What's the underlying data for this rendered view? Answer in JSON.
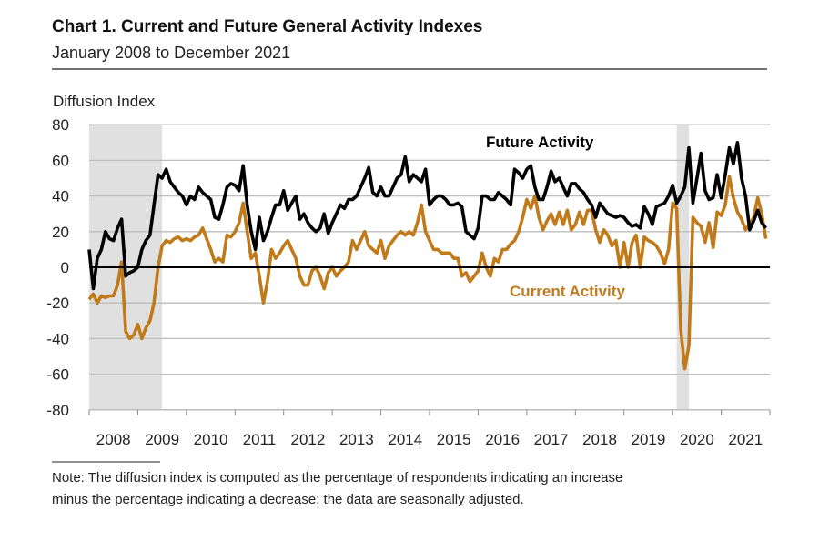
{
  "chart_data": {
    "type": "line",
    "title": "Chart 1. Current and Future General Activity Indexes",
    "subtitle": "January 2008 to December 2021",
    "ylabel": "Diffusion Index",
    "ylim": [
      -80,
      80
    ],
    "yticks": [
      "80",
      "60",
      "40",
      "20",
      "0",
      "-20",
      "-40",
      "-60",
      "-80"
    ],
    "ytick_values": [
      80,
      60,
      40,
      20,
      0,
      -20,
      -40,
      -60,
      -80
    ],
    "xlim": [
      "2008-01",
      "2021-12"
    ],
    "xtick_labels": [
      "2008",
      "2009",
      "2010",
      "2011",
      "2012",
      "2013",
      "2014",
      "2015",
      "2016",
      "2017",
      "2018",
      "2019",
      "2020",
      "2021"
    ],
    "frequency": "monthly",
    "grid": "horizontal",
    "recession_shading": [
      [
        "2008-01",
        "2009-06"
      ],
      [
        "2020-02",
        "2020-04"
      ]
    ],
    "colors": {
      "future": "#000000",
      "current": "#C07A1A",
      "shading": "#E0E0E0"
    },
    "series": [
      {
        "name": "Future Activity",
        "values": [
          10,
          -12,
          5,
          10,
          20,
          16,
          15,
          22,
          27,
          -5,
          -3,
          -2,
          0,
          10,
          15,
          18,
          35,
          52,
          50,
          55,
          48,
          45,
          42,
          40,
          35,
          40,
          38,
          45,
          42,
          40,
          38,
          28,
          27,
          35,
          45,
          47,
          46,
          43,
          57,
          35,
          20,
          10,
          28,
          15,
          20,
          28,
          35,
          35,
          43,
          32,
          36,
          40,
          27,
          30,
          25,
          22,
          20,
          22,
          30,
          19,
          25,
          30,
          35,
          33,
          38,
          38,
          40,
          45,
          50,
          56,
          42,
          40,
          45,
          40,
          40,
          45,
          50,
          52,
          62,
          48,
          52,
          50,
          48,
          55,
          35,
          38,
          40,
          40,
          38,
          35,
          35,
          36,
          34,
          20,
          18,
          16,
          22,
          40,
          40,
          38,
          38,
          42,
          40,
          38,
          35,
          55,
          53,
          50,
          55,
          57,
          45,
          38,
          38,
          45,
          54,
          48,
          50,
          45,
          40,
          47,
          47,
          44,
          42,
          38,
          35,
          28,
          36,
          33,
          30,
          29,
          28,
          29,
          28,
          25,
          23,
          24,
          22,
          34,
          30,
          24,
          34,
          35,
          36,
          40,
          46,
          36,
          40,
          45,
          67,
          36,
          50,
          64,
          43,
          38,
          39,
          52,
          39,
          52,
          67,
          58,
          70,
          50,
          40,
          21,
          26,
          32,
          25,
          22
        ]
      },
      {
        "name": "Current Activity",
        "values": [
          -18,
          -15,
          -20,
          -16,
          -17,
          -16,
          -16,
          -10,
          3,
          -36,
          -40,
          -38,
          -32,
          -40,
          -34,
          -30,
          -20,
          0,
          12,
          15,
          14,
          16,
          17,
          15,
          16,
          15,
          17,
          18,
          22,
          16,
          10,
          3,
          5,
          3,
          18,
          17,
          20,
          25,
          36,
          20,
          5,
          8,
          -5,
          -20,
          -8,
          10,
          5,
          8,
          12,
          15,
          10,
          5,
          -5,
          -10,
          -10,
          -2,
          0,
          -5,
          -12,
          -3,
          0,
          -5,
          -2,
          0,
          3,
          15,
          10,
          15,
          20,
          12,
          10,
          8,
          15,
          5,
          12,
          15,
          18,
          20,
          18,
          20,
          18,
          25,
          35,
          20,
          15,
          10,
          10,
          8,
          8,
          8,
          5,
          5,
          -5,
          -3,
          -8,
          -5,
          -2,
          8,
          0,
          -5,
          5,
          3,
          10,
          10,
          13,
          15,
          20,
          28,
          38,
          33,
          40,
          28,
          21,
          26,
          30,
          24,
          31,
          24,
          32,
          21,
          24,
          31,
          24,
          32,
          32,
          21,
          14,
          21,
          18,
          12,
          15,
          0,
          14,
          0,
          14,
          18,
          0,
          17,
          15,
          14,
          12,
          8,
          2,
          10,
          36,
          33,
          -35,
          -57,
          -44,
          28,
          25,
          23,
          14,
          25,
          11,
          31,
          29,
          35,
          51,
          39,
          31,
          27,
          21,
          24,
          28,
          39,
          30,
          16
        ]
      }
    ],
    "annotations": [
      "Future Activity",
      "Current Activity"
    ],
    "note": [
      "Note: The diffusion index is computed as the percentage of respondents indicating an increase",
      "minus the percentage indicating a decrease; the data are seasonally adjusted."
    ]
  }
}
